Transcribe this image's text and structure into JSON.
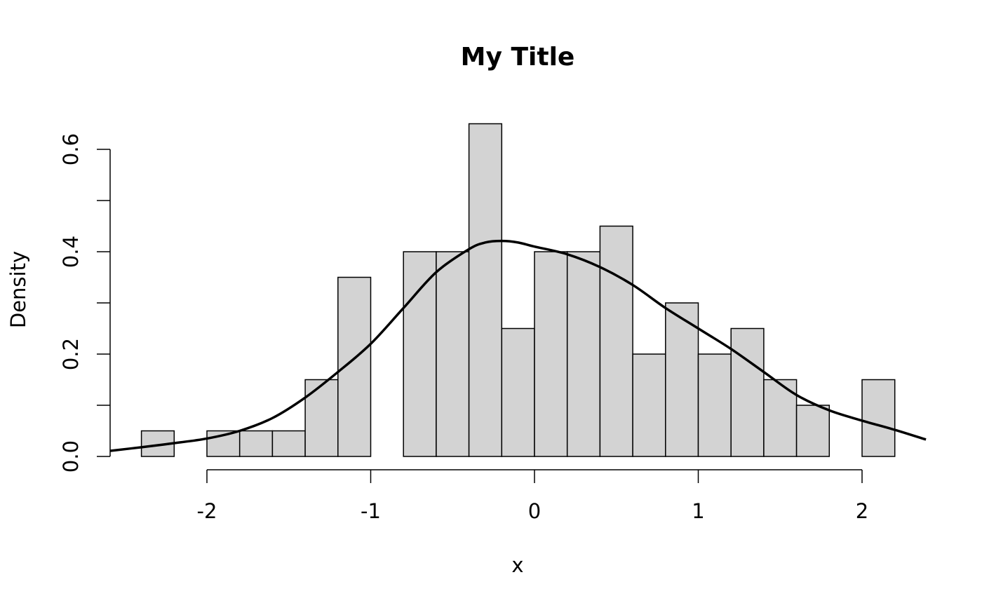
{
  "chart_data": {
    "type": "bar",
    "title": "My Title",
    "xlabel": "x",
    "ylabel": "Density",
    "xlim": [
      -2.6,
      2.4
    ],
    "ylim": [
      0,
      0.6
    ],
    "grid": false,
    "bar_fill": "#d3d3d3",
    "line_color": "#000000",
    "x_ticks": [
      -2,
      -1,
      0,
      1,
      2
    ],
    "x_tick_labels": [
      "-2",
      "-1",
      "0",
      "1",
      "2"
    ],
    "y_ticks": [
      0,
      0.1,
      0.2,
      0.3,
      0.4,
      0.5,
      0.6
    ],
    "y_tick_labels": [
      {
        "value": 0,
        "label": "0.0"
      },
      {
        "value": 0.2,
        "label": "0.2"
      },
      {
        "value": 0.4,
        "label": "0.4"
      },
      {
        "value": 0.6,
        "label": "0.6"
      }
    ],
    "histogram": {
      "breaks": [
        -2.4,
        -2.2,
        -2.0,
        -1.8,
        -1.6,
        -1.4,
        -1.2,
        -1.0,
        -0.8,
        -0.6,
        -0.4,
        -0.2,
        0,
        0.2,
        0.4,
        0.6,
        0.8,
        1.0,
        1.2,
        1.4,
        1.6,
        1.8,
        2.0,
        2.2
      ],
      "density": [
        0.05,
        0,
        0.05,
        0.05,
        0.05,
        0.15,
        0.35,
        0,
        0.4,
        0.4,
        0.65,
        0.25,
        0.4,
        0.4,
        0.45,
        0.2,
        0.3,
        0.2,
        0.25,
        0.15,
        0.1,
        0,
        0.15
      ]
    },
    "density_curve": {
      "x": [
        -2.59,
        -2.4,
        -2.2,
        -2.0,
        -1.8,
        -1.6,
        -1.4,
        -1.2,
        -1.0,
        -0.8,
        -0.6,
        -0.4,
        -0.3,
        -0.2,
        -0.1,
        0,
        0.2,
        0.4,
        0.6,
        0.8,
        1.0,
        1.2,
        1.4,
        1.6,
        1.8,
        2.0,
        2.2,
        2.39
      ],
      "y": [
        0.011,
        0.018,
        0.026,
        0.035,
        0.05,
        0.075,
        0.115,
        0.165,
        0.22,
        0.29,
        0.36,
        0.405,
        0.418,
        0.421,
        0.418,
        0.41,
        0.395,
        0.37,
        0.335,
        0.29,
        0.25,
        0.21,
        0.165,
        0.12,
        0.09,
        0.07,
        0.052,
        0.033
      ]
    }
  }
}
